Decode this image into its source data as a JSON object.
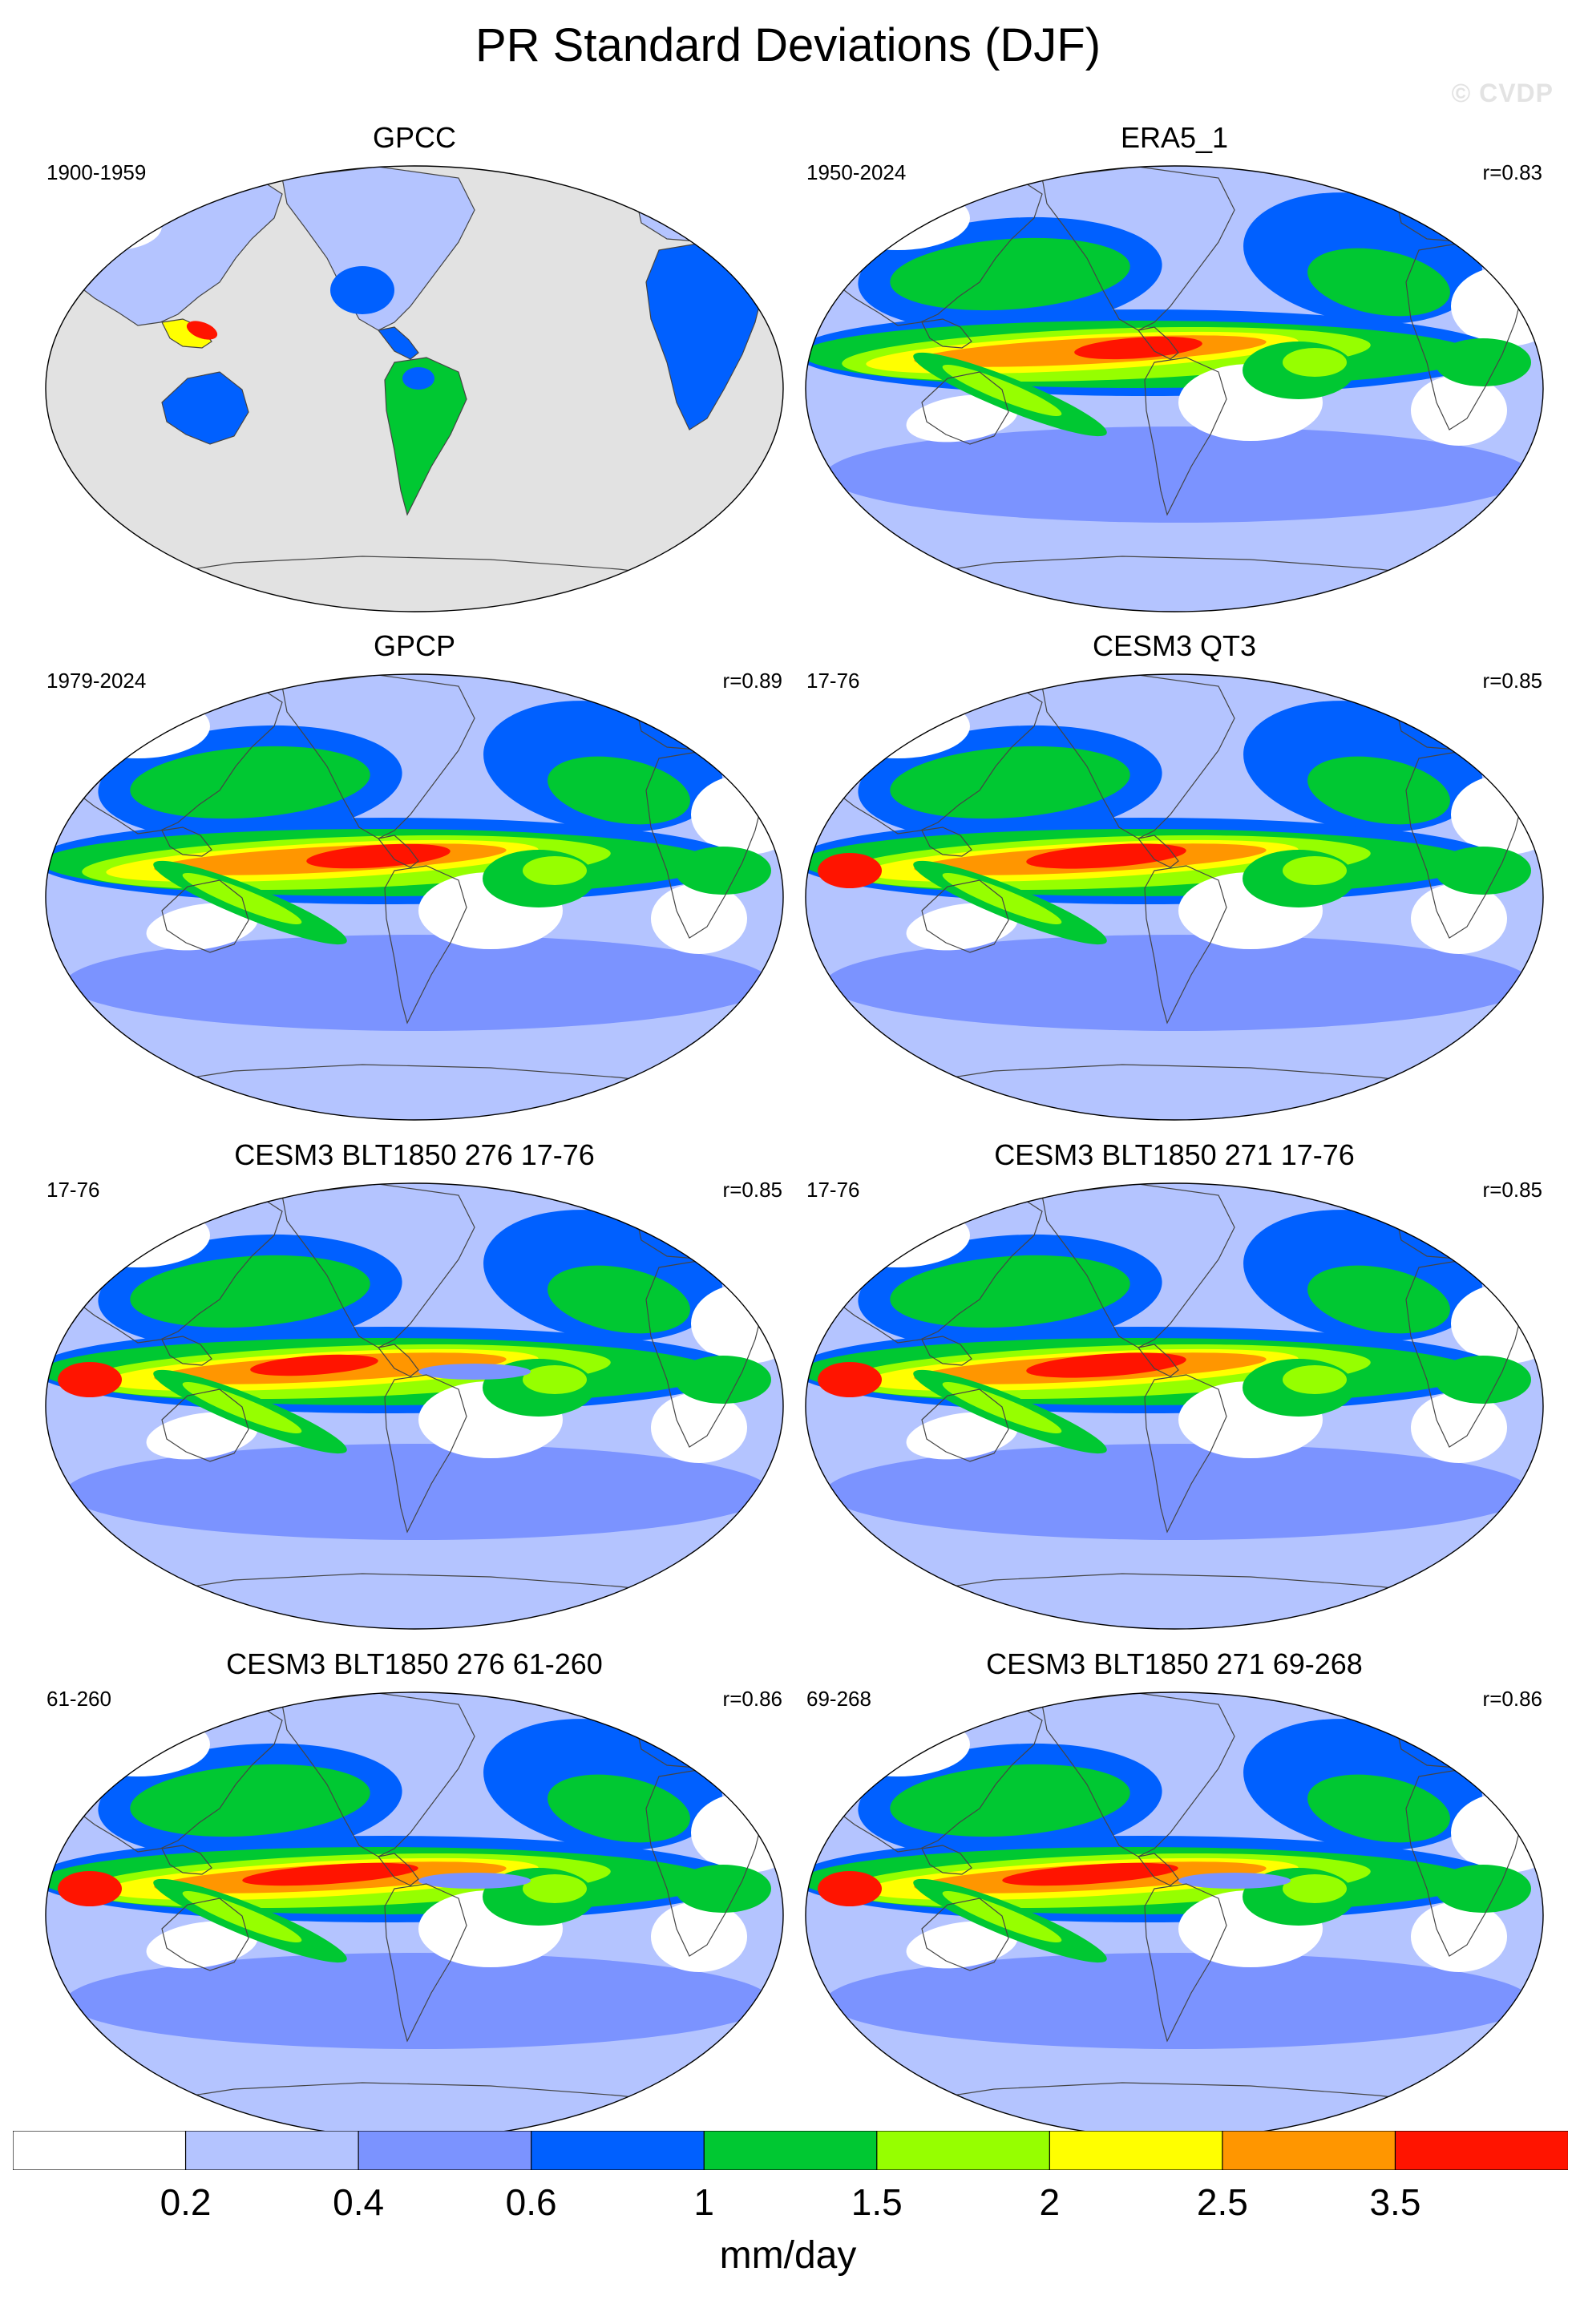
{
  "title": "PR Standard Deviations (DJF)",
  "watermark": "© CVDP",
  "colorbar": {
    "units": "mm/day",
    "colors": [
      "#ffffff",
      "#b4c4ff",
      "#7b93ff",
      "#0060ff",
      "#00c832",
      "#96ff00",
      "#ffff00",
      "#ff9600",
      "#ff1400"
    ],
    "labels": [
      "0.2",
      "0.4",
      "0.6",
      "1",
      "1.5",
      "2",
      "2.5",
      "3.5"
    ]
  },
  "panels": [
    {
      "title": "GPCC",
      "years": "1900-1959",
      "r": "",
      "style": "landonly"
    },
    {
      "title": "ERA5_1",
      "years": "1950-2024",
      "r": "r=0.83",
      "style": "era5"
    },
    {
      "title": "GPCP",
      "years": "1979-2024",
      "r": "r=0.89",
      "style": "obs"
    },
    {
      "title": "CESM3 QT3",
      "years": "17-76",
      "r": "r=0.85",
      "style": "model"
    },
    {
      "title": "CESM3 BLT1850 276 17-76",
      "years": "17-76",
      "r": "r=0.85",
      "style": "model2"
    },
    {
      "title": "CESM3 BLT1850 271 17-76",
      "years": "17-76",
      "r": "r=0.85",
      "style": "model"
    },
    {
      "title": "CESM3 BLT1850 276 61-260",
      "years": "61-260",
      "r": "r=0.86",
      "style": "model3"
    },
    {
      "title": "CESM3 BLT1850 271 69-268",
      "years": "69-268",
      "r": "r=0.86",
      "style": "model3"
    }
  ]
}
